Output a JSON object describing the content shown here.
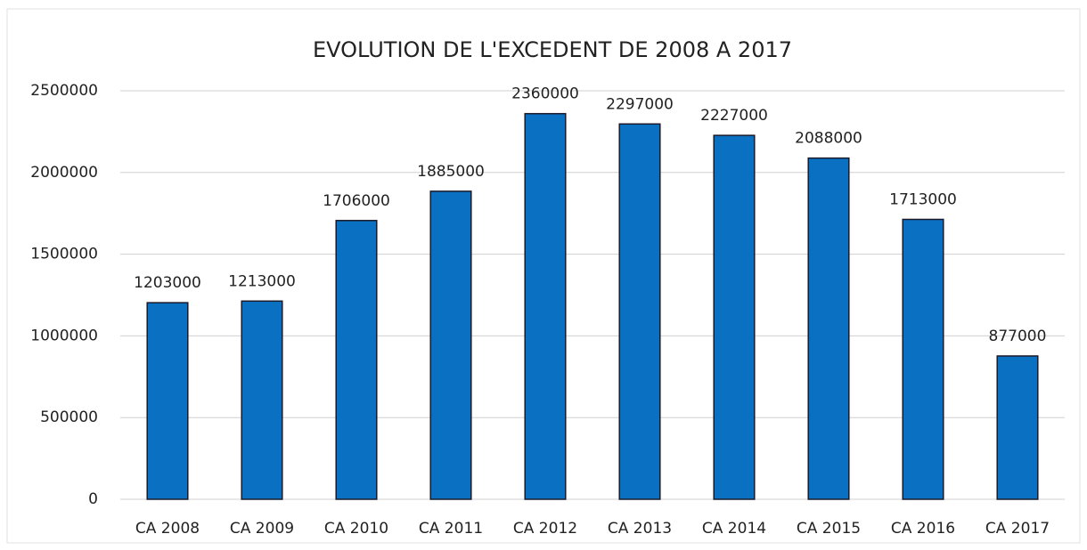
{
  "chart_data": {
    "type": "bar",
    "title": "EVOLUTION DE L'EXCEDENT DE 2008 A 2017",
    "categories": [
      "CA 2008",
      "CA 2009",
      "CA 2010",
      "CA 2011",
      "CA 2012",
      "CA 2013",
      "CA 2014",
      "CA 2015",
      "CA 2016",
      "CA 2017"
    ],
    "values": [
      1203000,
      1213000,
      1706000,
      1885000,
      2360000,
      2297000,
      2227000,
      2088000,
      1713000,
      877000
    ],
    "color": "#0a70c2",
    "ylim": [
      0,
      2500000
    ],
    "yticks": [
      0,
      500000,
      1000000,
      1500000,
      2000000,
      2500000
    ],
    "grid": true
  }
}
